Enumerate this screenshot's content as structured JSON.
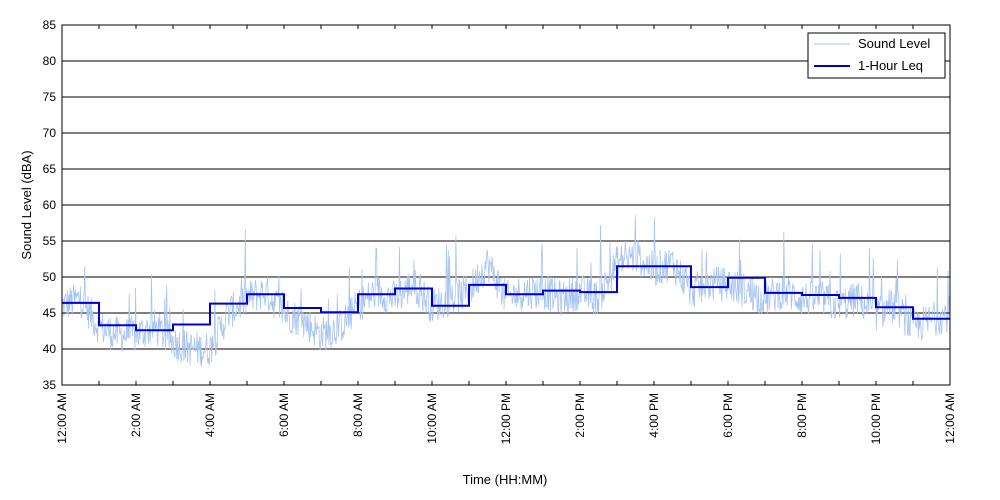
{
  "chart_data": {
    "type": "line",
    "xlabel": "Time (HH:MM)",
    "ylabel": "Sound Level (dBA)",
    "ylim": [
      35,
      85
    ],
    "xlim_hours": [
      0,
      24
    ],
    "grid": "horizontal",
    "legend_position": "top-right",
    "y_ticks": [
      "35",
      "40",
      "45",
      "50",
      "55",
      "60",
      "65",
      "70",
      "75",
      "80",
      "85"
    ],
    "x_ticks": [
      {
        "hour": 0,
        "label": "12:00 AM"
      },
      {
        "hour": 2,
        "label": "2:00 AM"
      },
      {
        "hour": 4,
        "label": "4:00 AM"
      },
      {
        "hour": 6,
        "label": "6:00 AM"
      },
      {
        "hour": 8,
        "label": "8:00 AM"
      },
      {
        "hour": 10,
        "label": "10:00 AM"
      },
      {
        "hour": 12,
        "label": "12:00 PM"
      },
      {
        "hour": 14,
        "label": "2:00 PM"
      },
      {
        "hour": 16,
        "label": "4:00 PM"
      },
      {
        "hour": 18,
        "label": "6:00 PM"
      },
      {
        "hour": 20,
        "label": "8:00 PM"
      },
      {
        "hour": 22,
        "label": "10:00 PM"
      },
      {
        "hour": 24,
        "label": "12:00 AM"
      }
    ],
    "series": [
      {
        "name": "Sound Level",
        "color": "#a8c4f2",
        "x_hours": [
          0,
          0.5,
          1,
          1.5,
          2,
          2.5,
          3,
          3.5,
          4,
          4.5,
          5,
          5.5,
          6,
          6.5,
          7,
          7.5,
          8,
          8.5,
          9,
          9.5,
          10,
          10.5,
          11,
          11.5,
          12,
          12.5,
          13,
          13.5,
          14,
          14.5,
          15,
          15.5,
          16,
          16.5,
          17,
          17.5,
          18,
          18.5,
          19,
          19.5,
          20,
          20.5,
          21,
          21.5,
          22,
          22.5,
          23,
          23.5,
          24
        ],
        "values": [
          46,
          47,
          43,
          42,
          42,
          43,
          41,
          40,
          40,
          45,
          47,
          48,
          45,
          44,
          42,
          43,
          46,
          48,
          47,
          49,
          46,
          47,
          48,
          52,
          47,
          48,
          48,
          47,
          48,
          47,
          52,
          53,
          51,
          52,
          48,
          49,
          49,
          48,
          47,
          48,
          47,
          47,
          46,
          47,
          45,
          46,
          43,
          44,
          45
        ]
      },
      {
        "name": "1-Hour Leq",
        "color": "#0000cc",
        "step_start_hours": [
          0,
          1,
          2,
          3,
          4,
          5,
          6,
          7,
          8,
          9,
          10,
          11,
          12,
          13,
          14,
          15,
          16,
          17,
          18,
          19,
          20,
          21,
          22,
          23
        ],
        "values": [
          46.4,
          43.3,
          42.6,
          43.4,
          46.3,
          47.6,
          45.7,
          45.1,
          47.6,
          48.4,
          46.0,
          48.9,
          47.6,
          48.1,
          47.9,
          51.5,
          51.5,
          48.6,
          49.9,
          47.8,
          47.5,
          47.1,
          45.8,
          44.2
        ]
      }
    ]
  }
}
